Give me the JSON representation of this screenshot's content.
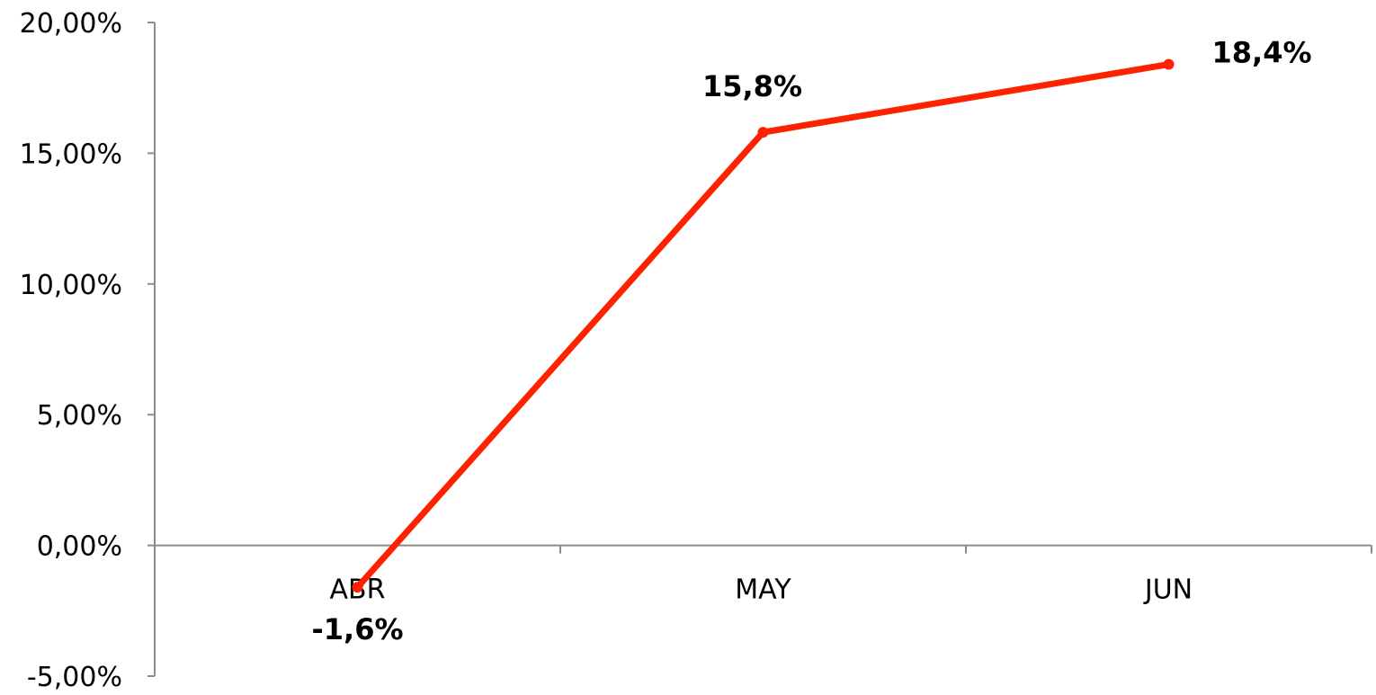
{
  "chart_data": {
    "type": "line",
    "categories": [
      "ABR",
      "MAY",
      "JUN"
    ],
    "series": [
      {
        "values": [
          -1.6,
          15.8,
          18.4
        ],
        "data_labels": [
          "-1,6%",
          "15,8%",
          "18,4%"
        ],
        "color": "#ff2200"
      }
    ],
    "ylim": [
      -5,
      20
    ],
    "y_ticks": [
      20,
      15,
      10,
      5,
      0,
      -5
    ],
    "y_tick_labels": [
      "20,00%",
      "15,00%",
      "10,00%",
      "5,00%",
      "0,00%",
      "-5,00%"
    ],
    "grid": false,
    "legend": "none",
    "axis_color": "#8c8c8c"
  }
}
